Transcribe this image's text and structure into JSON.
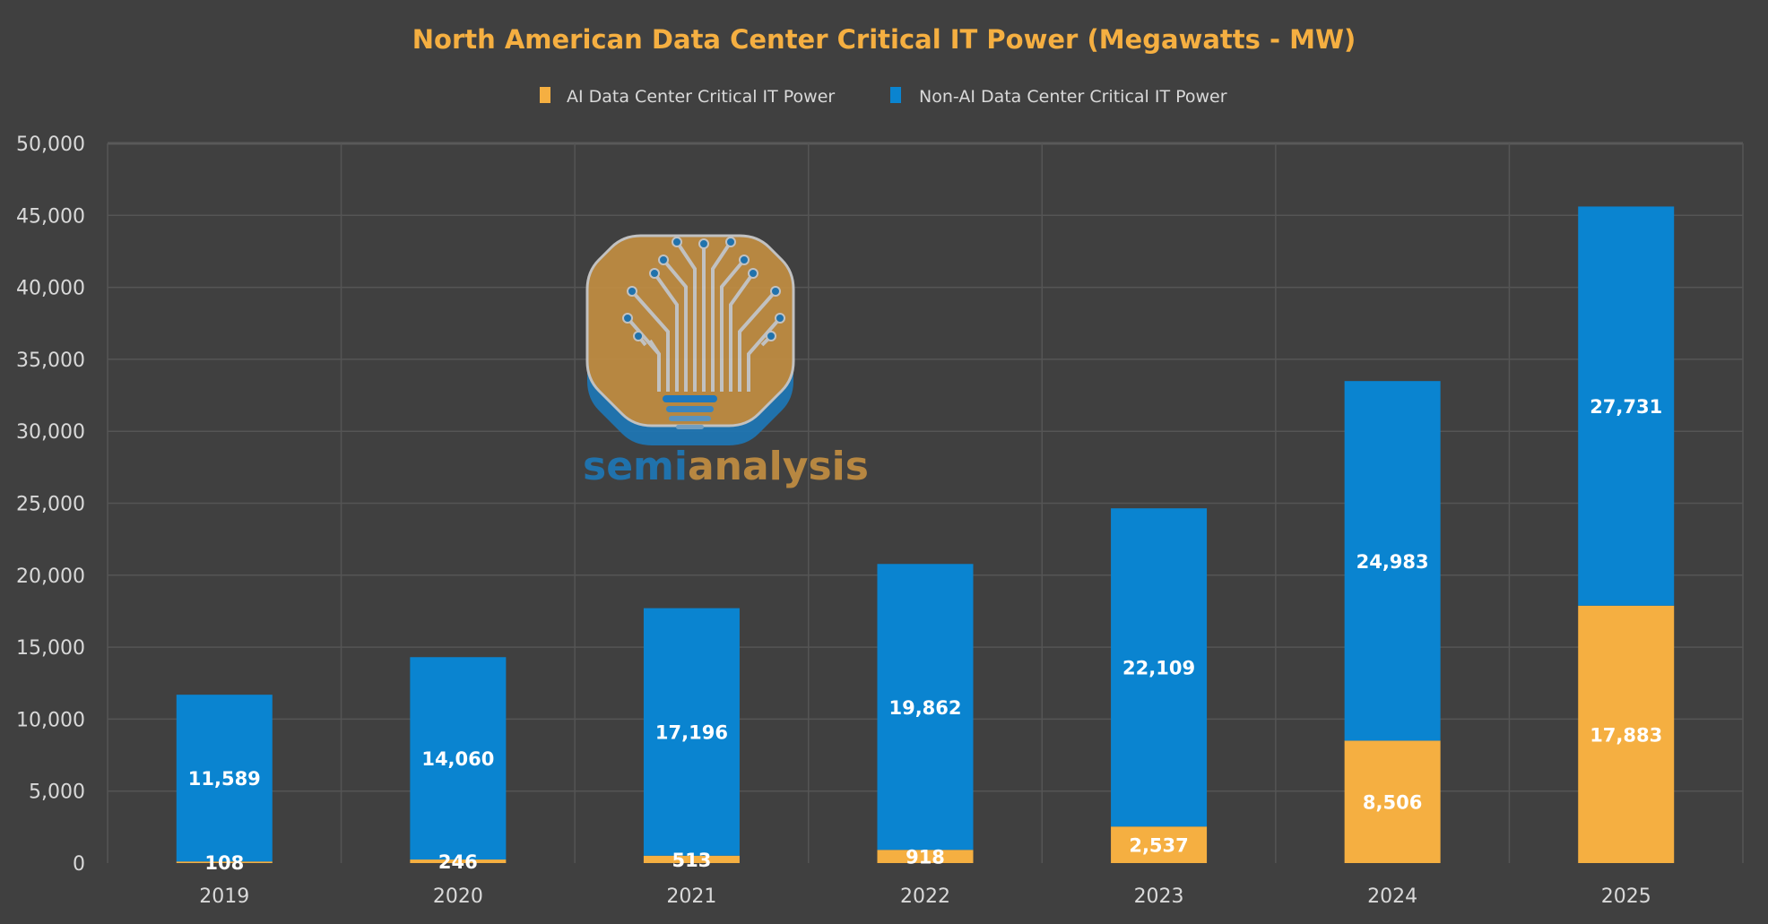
{
  "chart_data": {
    "type": "bar",
    "stacked": true,
    "title": "North American Data Center Critical IT Power (Megawatts - MW)",
    "xlabel": "",
    "ylabel": "",
    "categories": [
      "2019",
      "2020",
      "2021",
      "2022",
      "2023",
      "2024",
      "2025"
    ],
    "series": [
      {
        "name": "AI Data Center Critical IT Power",
        "color": "#F5AF41",
        "values": [
          108,
          246,
          513,
          918,
          2537,
          8506,
          17883
        ]
      },
      {
        "name": "Non-AI Data Center Critical IT Power",
        "color": "#0A84D0",
        "values": [
          11589,
          14060,
          17196,
          19862,
          22109,
          24983,
          27731
        ]
      }
    ],
    "ylim": [
      0,
      50000
    ],
    "yticks": [
      0,
      5000,
      10000,
      15000,
      20000,
      25000,
      30000,
      35000,
      40000,
      45000,
      50000
    ],
    "grid": true,
    "legend_position": "top",
    "data_labels": true,
    "background": "#404040",
    "watermark": "semianalysis"
  }
}
